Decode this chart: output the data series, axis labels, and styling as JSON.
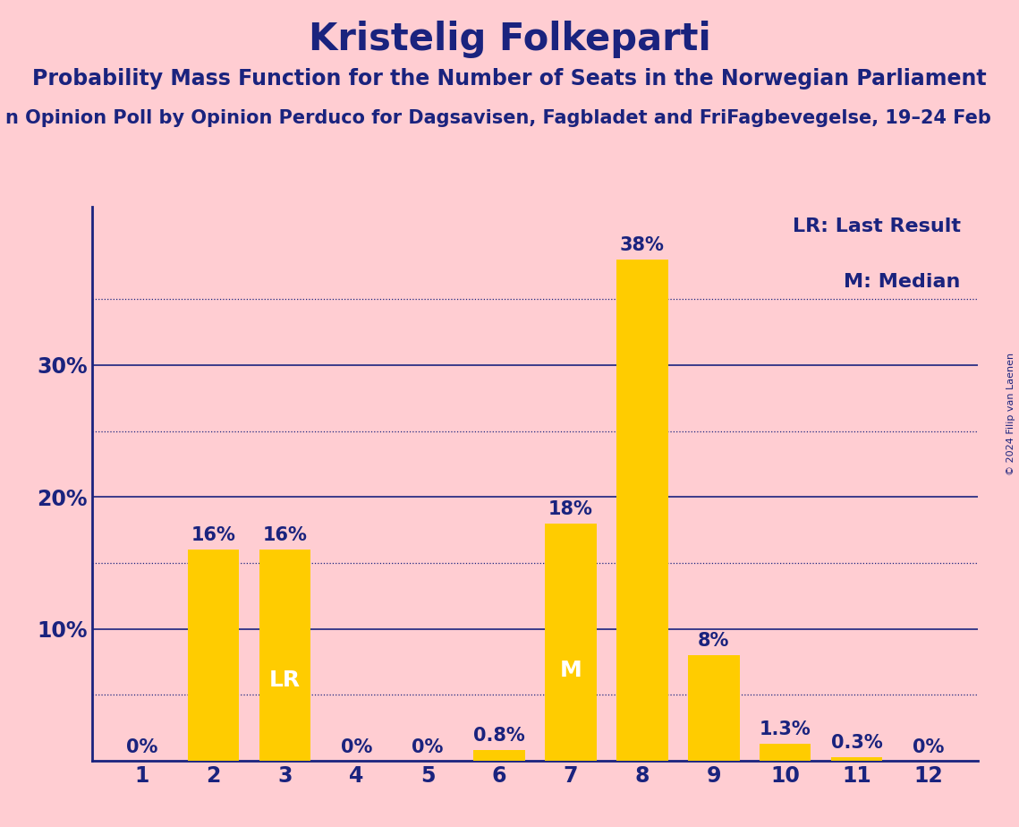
{
  "title": "Kristelig Folkeparti",
  "subtitle": "Probability Mass Function for the Number of Seats in the Norwegian Parliament",
  "source_line": "n Opinion Poll by Opinion Perduco for Dagsavisen, Fagbladet and FriFagbevegelse, 19–24 Feb",
  "copyright": "© 2024 Filip van Laenen",
  "categories": [
    1,
    2,
    3,
    4,
    5,
    6,
    7,
    8,
    9,
    10,
    11,
    12
  ],
  "values": [
    0.0,
    16.0,
    16.0,
    0.0,
    0.0,
    0.8,
    18.0,
    38.0,
    8.0,
    1.3,
    0.3,
    0.0
  ],
  "bar_color": "#FFCC00",
  "background_color": "#FFCDD2",
  "text_color": "#1a237e",
  "axis_color": "#1a237e",
  "lr_bar": 3,
  "median_bar": 7,
  "lr_label": "LR",
  "median_label": "M",
  "lr_legend": "LR: Last Result",
  "median_legend": "M: Median",
  "label_inside_color": "#FFFFFF",
  "grid_major_color": "#1a237e",
  "grid_minor_color": "#1a237e",
  "title_fontsize": 30,
  "subtitle_fontsize": 17,
  "source_fontsize": 15,
  "bar_label_fontsize": 15,
  "axis_tick_fontsize": 17,
  "legend_fontsize": 16,
  "inside_label_fontsize": 18,
  "copyright_fontsize": 8,
  "ylim": [
    0,
    42
  ],
  "major_yticks": [
    10,
    20,
    30
  ],
  "minor_yticks": [
    5,
    15,
    25,
    35
  ]
}
